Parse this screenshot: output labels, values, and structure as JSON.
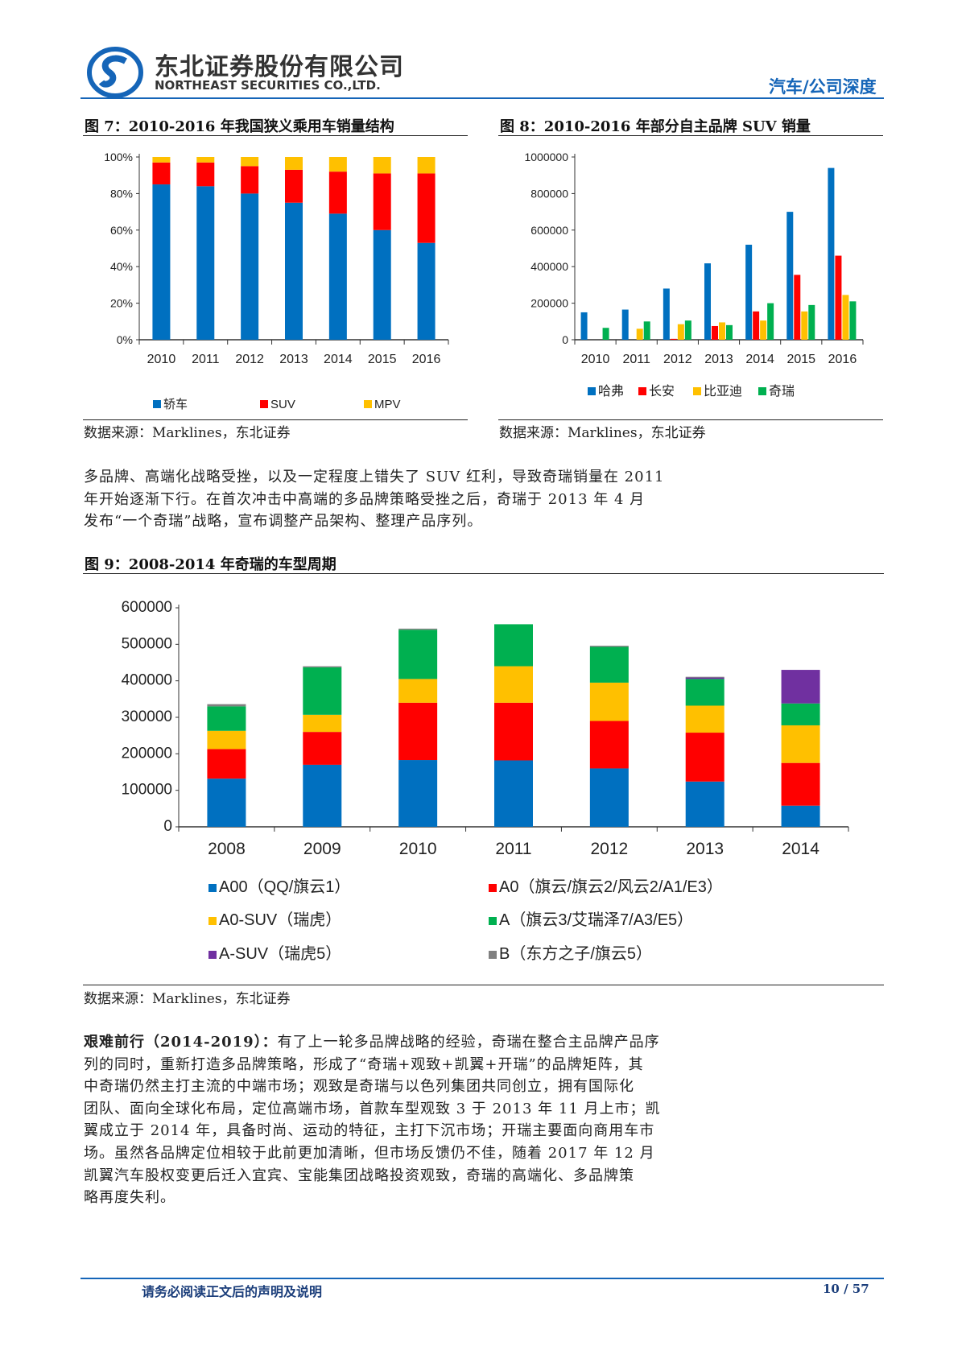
{
  "header": {
    "company_cn": "东北证券股份有限公司",
    "company_en": "NORTHEAST SECURITIES CO.,LTD.",
    "section": "汽车/公司深度",
    "brand_color": "#1565b8"
  },
  "fig7": {
    "title": "图 7：2010-2016 年我国狭义乘用车销量结构",
    "source": "数据来源：Marklines，东北证券"
  },
  "fig8": {
    "title": "图 8：2010-2016 年部分自主品牌 SUV 销量",
    "source": "数据来源：Marklines，东北证券"
  },
  "paragraph1": [
    "多品牌、高端化战略受挫，以及一定程度上错失了 SUV 红利，导致奇瑞销量在 2011",
    "年开始逐渐下行。在首次冲击中高端的多品牌策略受挫之后，奇瑞于 2013 年 4 月",
    "发布“一个奇瑞”战略，宣布调整产品架构、整理产品序列。"
  ],
  "fig9": {
    "title": "图 9：2008-2014 年奇瑞的车型周期",
    "source": "数据来源：Marklines，东北证券"
  },
  "paragraph2": {
    "lead": "艰难前行（2014-2019）：",
    "lines": [
      "有了上一轮多品牌战略的经验，奇瑞在整合主品牌产品序",
      "列的同时，重新打造多品牌策略，形成了“奇瑞+观致+凯翼+开瑞”的品牌矩阵，其",
      "中奇瑞仍然主打主流的中端市场；观致是奇瑞与以色列集团共同创立，拥有国际化",
      "团队、面向全球化布局，定位高端市场，首款车型观致 3 于 2013 年 11 月上市；凯",
      "翼成立于 2014 年，具备时尚、运动的特征，主打下沉市场；开瑞主要面向商用车市",
      "场。虽然各品牌定位相较于此前更加清晰，但市场反馈仍不佳，随着 2017 年 12 月",
      "凯翼汽车股权变更后迁入宜宾、宝能集团战略投资观致，奇瑞的高端化、多品牌策",
      "略再度失利。"
    ]
  },
  "footer": {
    "notice": "请务必阅读正文后的声明及说明",
    "page": "10 / 57"
  },
  "chart_data": [
    {
      "type": "bar",
      "stacked": true,
      "title": "2010-2016 年我国狭义乘用车销量结构",
      "categories": [
        "2010",
        "2011",
        "2012",
        "2013",
        "2014",
        "2015",
        "2016"
      ],
      "yticks": [
        "0%",
        "20%",
        "40%",
        "60%",
        "80%",
        "100%"
      ],
      "ylim": [
        0,
        100
      ],
      "legend": "bottom",
      "series": [
        {
          "name": "轿车",
          "color": "#0070c0",
          "values": [
            85,
            84,
            80,
            75,
            69,
            60,
            53
          ]
        },
        {
          "name": "SUV",
          "color": "#ff0000",
          "values": [
            12,
            13,
            15,
            18,
            23,
            31,
            38
          ]
        },
        {
          "name": "MPV",
          "color": "#ffc000",
          "values": [
            3,
            3,
            5,
            7,
            8,
            9,
            9
          ]
        }
      ]
    },
    {
      "type": "bar",
      "stacked": false,
      "title": "2010-2016 年部分自主品牌 SUV 销量",
      "categories": [
        "2010",
        "2011",
        "2012",
        "2013",
        "2014",
        "2015",
        "2016"
      ],
      "yticks": [
        "0",
        "200000",
        "400000",
        "600000",
        "800000",
        "1000000"
      ],
      "ylim": [
        0,
        1000000
      ],
      "legend": "bottom",
      "series": [
        {
          "name": "哈弗",
          "color": "#0070c0",
          "values": [
            150000,
            165000,
            280000,
            418000,
            520000,
            700000,
            940000
          ]
        },
        {
          "name": "长安",
          "color": "#ff0000",
          "values": [
            0,
            0,
            5000,
            75000,
            155000,
            355000,
            460000
          ]
        },
        {
          "name": "比亚迪",
          "color": "#ffc000",
          "values": [
            0,
            60000,
            85000,
            95000,
            105000,
            155000,
            245000
          ]
        },
        {
          "name": "奇瑞",
          "color": "#00b050",
          "values": [
            65000,
            100000,
            105000,
            80000,
            200000,
            190000,
            210000
          ]
        }
      ]
    },
    {
      "type": "bar",
      "stacked": true,
      "title": "2008-2014 年奇瑞的车型周期",
      "categories": [
        "2008",
        "2009",
        "2010",
        "2011",
        "2012",
        "2013",
        "2014"
      ],
      "yticks": [
        "0",
        "100000",
        "200000",
        "300000",
        "400000",
        "500000",
        "600000"
      ],
      "ylim": [
        0,
        600000
      ],
      "legend": "bottom",
      "series": [
        {
          "name": "A00（QQ/旗云1）",
          "color": "#0070c0",
          "values": [
            132000,
            170000,
            183000,
            182000,
            160000,
            124000,
            58000
          ]
        },
        {
          "name": "A0（旗云/旗云2/风云2/A1/E3）",
          "color": "#ff0000",
          "values": [
            81000,
            90000,
            157000,
            158000,
            130000,
            134000,
            117000
          ]
        },
        {
          "name": "A0-SUV（瑞虎）",
          "color": "#ffc000",
          "values": [
            50000,
            47000,
            65000,
            100000,
            105000,
            74000,
            103000
          ]
        },
        {
          "name": "A（旗云3/艾瑞泽7/A3/E5）",
          "color": "#00b050",
          "values": [
            67000,
            130000,
            135000,
            115000,
            98000,
            73000,
            60000
          ]
        },
        {
          "name": "A-SUV（瑞虎5）",
          "color": "#7030a0",
          "values": [
            0,
            0,
            0,
            0,
            0,
            4000,
            92000
          ]
        },
        {
          "name": "B（东方之子/旗云5）",
          "color": "#808080",
          "values": [
            6000,
            3000,
            3000,
            0,
            3000,
            2000,
            0
          ]
        }
      ]
    }
  ]
}
